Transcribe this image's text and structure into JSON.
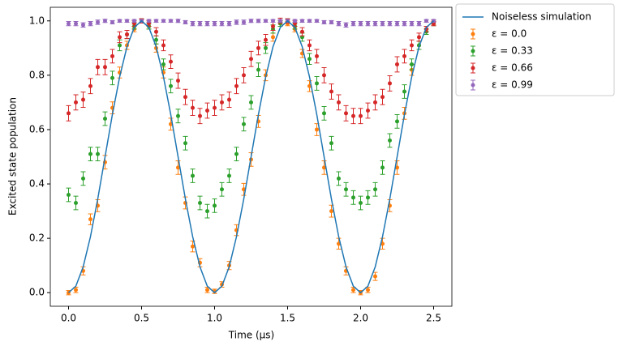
{
  "chart_data": {
    "type": "errorbar",
    "x_label": "Time (μs)",
    "y_label": "Excited state population",
    "xlim": [
      -0.125,
      2.625
    ],
    "ylim": [
      -0.05,
      1.05
    ],
    "xticks": [
      {
        "value": 0,
        "label": "0.0"
      },
      0.5,
      {
        "value": 1,
        "label": "1.0"
      },
      1.5,
      {
        "value": 2,
        "label": "2.0"
      },
      2.5
    ],
    "yticks": [
      {
        "value": 0,
        "label": "0.0"
      },
      0.2,
      0.4,
      0.6,
      0.8,
      {
        "value": 1,
        "label": "1.0"
      }
    ],
    "legend": "outside-upper-right",
    "x": [
      0,
      0.05,
      0.1,
      0.15,
      0.2,
      0.25,
      0.3,
      0.35,
      0.4,
      0.45,
      0.5,
      0.55,
      0.6,
      0.65,
      0.7,
      0.75,
      0.8,
      0.85,
      0.9,
      0.95,
      1,
      1.05,
      1.1,
      1.15,
      1.2,
      1.25,
      1.3,
      1.35,
      1.4,
      1.45,
      1.5,
      1.55,
      1.6,
      1.65,
      1.7,
      1.75,
      1.8,
      1.85,
      1.9,
      1.95,
      2,
      2.05,
      2.1,
      2.15,
      2.2,
      2.25,
      2.3,
      2.35,
      2.4,
      2.45,
      2.5
    ],
    "series": [
      {
        "name": "Noiseless simulation",
        "kind": "line",
        "color": "#1f77b4",
        "values": [
          0,
          0.024,
          0.095,
          0.206,
          0.345,
          0.5,
          0.655,
          0.794,
          0.905,
          0.976,
          1,
          0.976,
          0.905,
          0.794,
          0.655,
          0.5,
          0.345,
          0.206,
          0.095,
          0.024,
          0,
          0.024,
          0.095,
          0.206,
          0.345,
          0.5,
          0.655,
          0.794,
          0.905,
          0.976,
          1,
          0.976,
          0.905,
          0.794,
          0.655,
          0.5,
          0.345,
          0.206,
          0.095,
          0.024,
          0,
          0.024,
          0.095,
          0.206,
          0.345,
          0.5,
          0.655,
          0.794,
          0.905,
          0.976,
          1
        ]
      },
      {
        "name": "ε = 0.0",
        "kind": "errorbar",
        "color": "#ff7f0e",
        "values": [
          0,
          0.01,
          0.08,
          0.27,
          0.32,
          0.48,
          0.68,
          0.81,
          0.91,
          0.97,
          1,
          0.98,
          0.9,
          0.81,
          0.62,
          0.46,
          0.33,
          0.17,
          0.11,
          0.01,
          0.005,
          0.03,
          0.1,
          0.23,
          0.38,
          0.49,
          0.63,
          0.8,
          0.94,
          0.99,
          0.99,
          0.97,
          0.88,
          0.76,
          0.6,
          0.46,
          0.3,
          0.18,
          0.08,
          0.01,
          0,
          0.01,
          0.06,
          0.18,
          0.32,
          0.46,
          0.66,
          0.82,
          0.91,
          0.97,
          0.995
        ],
        "errors": [
          0.008,
          0.01,
          0.015,
          0.02,
          0.022,
          0.025,
          0.022,
          0.02,
          0.015,
          0.01,
          0.008,
          0.01,
          0.015,
          0.02,
          0.022,
          0.025,
          0.022,
          0.02,
          0.015,
          0.01,
          0.008,
          0.01,
          0.015,
          0.02,
          0.022,
          0.025,
          0.022,
          0.02,
          0.015,
          0.01,
          0.008,
          0.01,
          0.015,
          0.02,
          0.022,
          0.025,
          0.022,
          0.02,
          0.015,
          0.01,
          0.008,
          0.01,
          0.015,
          0.02,
          0.022,
          0.025,
          0.022,
          0.02,
          0.015,
          0.01,
          0.008
        ]
      },
      {
        "name": "ε = 0.33",
        "kind": "errorbar",
        "color": "#2ca02c",
        "values": [
          0.36,
          0.33,
          0.42,
          0.51,
          0.51,
          0.64,
          0.79,
          0.91,
          0.95,
          0.98,
          1,
          0.98,
          0.93,
          0.84,
          0.76,
          0.65,
          0.55,
          0.43,
          0.33,
          0.3,
          0.32,
          0.38,
          0.43,
          0.51,
          0.62,
          0.7,
          0.82,
          0.9,
          0.97,
          0.99,
          1,
          0.98,
          0.94,
          0.86,
          0.77,
          0.66,
          0.55,
          0.42,
          0.38,
          0.35,
          0.33,
          0.35,
          0.38,
          0.46,
          0.56,
          0.63,
          0.74,
          0.84,
          0.91,
          0.96,
          0.99
        ],
        "errors": [
          0.025,
          0.025,
          0.025,
          0.025,
          0.025,
          0.025,
          0.025,
          0.02,
          0.015,
          0.01,
          0.008,
          0.01,
          0.015,
          0.02,
          0.025,
          0.025,
          0.025,
          0.025,
          0.025,
          0.025,
          0.025,
          0.025,
          0.025,
          0.025,
          0.025,
          0.025,
          0.025,
          0.02,
          0.015,
          0.01,
          0.008,
          0.01,
          0.015,
          0.02,
          0.025,
          0.025,
          0.025,
          0.025,
          0.025,
          0.025,
          0.025,
          0.025,
          0.025,
          0.025,
          0.025,
          0.025,
          0.025,
          0.02,
          0.015,
          0.01,
          0.008
        ]
      },
      {
        "name": "ε = 0.66",
        "kind": "errorbar",
        "color": "#d62728",
        "values": [
          0.66,
          0.7,
          0.71,
          0.76,
          0.83,
          0.83,
          0.87,
          0.94,
          0.95,
          0.99,
          1,
          0.99,
          0.96,
          0.91,
          0.85,
          0.78,
          0.72,
          0.68,
          0.65,
          0.67,
          0.68,
          0.7,
          0.71,
          0.76,
          0.8,
          0.86,
          0.9,
          0.93,
          0.98,
          1,
          1,
          0.99,
          0.96,
          0.91,
          0.87,
          0.8,
          0.74,
          0.7,
          0.66,
          0.65,
          0.65,
          0.67,
          0.7,
          0.72,
          0.77,
          0.84,
          0.87,
          0.91,
          0.94,
          0.97,
          0.99
        ],
        "errors": [
          0.028,
          0.028,
          0.028,
          0.028,
          0.028,
          0.028,
          0.025,
          0.02,
          0.015,
          0.01,
          0.008,
          0.01,
          0.015,
          0.02,
          0.025,
          0.028,
          0.028,
          0.028,
          0.028,
          0.028,
          0.028,
          0.028,
          0.028,
          0.028,
          0.028,
          0.028,
          0.025,
          0.02,
          0.015,
          0.01,
          0.008,
          0.01,
          0.015,
          0.02,
          0.025,
          0.028,
          0.028,
          0.028,
          0.028,
          0.028,
          0.028,
          0.028,
          0.028,
          0.028,
          0.028,
          0.028,
          0.025,
          0.02,
          0.015,
          0.01,
          0.008
        ]
      },
      {
        "name": "ε = 0.99",
        "kind": "errorbar",
        "color": "#9467bd",
        "values": [
          0.99,
          0.99,
          0.985,
          0.99,
          0.995,
          1,
          0.995,
          1,
          1,
          1,
          1,
          1,
          1,
          1,
          1,
          1,
          0.995,
          0.99,
          0.99,
          0.99,
          0.99,
          0.99,
          0.99,
          0.995,
          0.995,
          1,
          1,
          1,
          1,
          1,
          1,
          1,
          1,
          1,
          1,
          0.995,
          0.995,
          0.99,
          0.985,
          0.99,
          0.99,
          0.99,
          0.99,
          0.99,
          0.99,
          0.99,
          0.99,
          0.99,
          0.99,
          1,
          1
        ],
        "errors": [
          0.008,
          0.008,
          0.008,
          0.008,
          0.008,
          0.006,
          0.006,
          0.005,
          0.005,
          0.005,
          0.005,
          0.005,
          0.005,
          0.005,
          0.005,
          0.006,
          0.006,
          0.008,
          0.008,
          0.008,
          0.008,
          0.008,
          0.008,
          0.008,
          0.008,
          0.006,
          0.006,
          0.005,
          0.005,
          0.005,
          0.005,
          0.005,
          0.005,
          0.005,
          0.005,
          0.006,
          0.006,
          0.008,
          0.008,
          0.008,
          0.008,
          0.008,
          0.008,
          0.008,
          0.008,
          0.008,
          0.008,
          0.008,
          0.008,
          0.005,
          0.005
        ]
      }
    ]
  }
}
